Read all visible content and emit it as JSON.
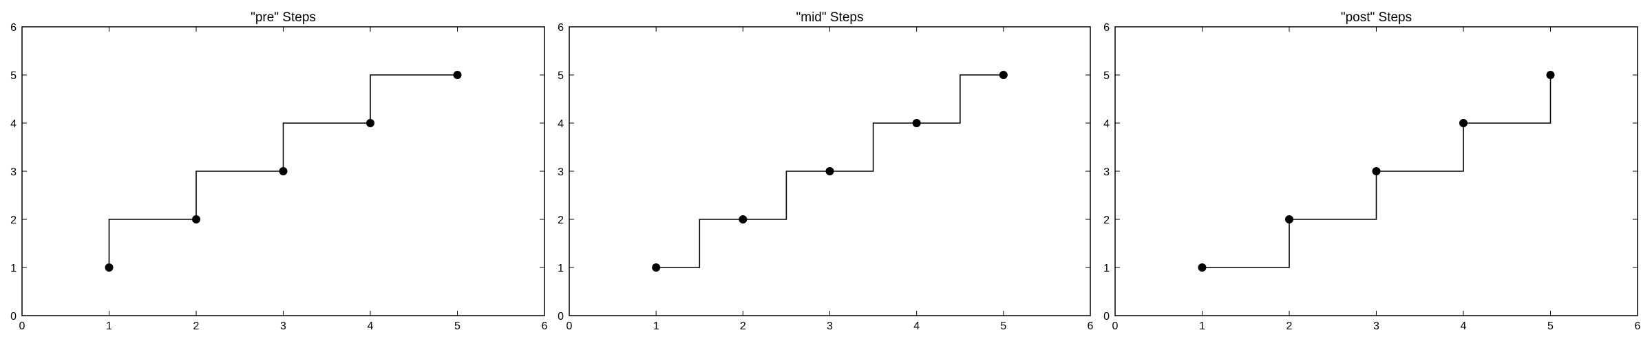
{
  "chart_data": [
    {
      "type": "line",
      "step": "pre",
      "title": "\"pre\" Steps",
      "x": [
        1,
        2,
        3,
        4,
        5
      ],
      "y": [
        1,
        2,
        3,
        4,
        5
      ],
      "xlim": [
        0,
        6
      ],
      "ylim": [
        0,
        6
      ],
      "xticks": [
        "0",
        "1",
        "2",
        "3",
        "4",
        "5",
        "6"
      ],
      "yticks": [
        "0",
        "1",
        "2",
        "3",
        "4",
        "5",
        "6"
      ],
      "grid": false,
      "line_color": "#000000",
      "marker_color": "#000000"
    },
    {
      "type": "line",
      "step": "mid",
      "title": "\"mid\" Steps",
      "x": [
        1,
        2,
        3,
        4,
        5
      ],
      "y": [
        1,
        2,
        3,
        4,
        5
      ],
      "xlim": [
        0,
        6
      ],
      "ylim": [
        0,
        6
      ],
      "xticks": [
        "0",
        "1",
        "2",
        "3",
        "4",
        "5",
        "6"
      ],
      "yticks": [
        "0",
        "1",
        "2",
        "3",
        "4",
        "5",
        "6"
      ],
      "grid": false,
      "line_color": "#000000",
      "marker_color": "#000000"
    },
    {
      "type": "line",
      "step": "post",
      "title": "\"post\" Steps",
      "x": [
        1,
        2,
        3,
        4,
        5
      ],
      "y": [
        1,
        2,
        3,
        4,
        5
      ],
      "xlim": [
        0,
        6
      ],
      "ylim": [
        0,
        6
      ],
      "xticks": [
        "0",
        "1",
        "2",
        "3",
        "4",
        "5",
        "6"
      ],
      "yticks": [
        "0",
        "1",
        "2",
        "3",
        "4",
        "5",
        "6"
      ],
      "grid": false,
      "line_color": "#000000",
      "marker_color": "#000000"
    }
  ]
}
